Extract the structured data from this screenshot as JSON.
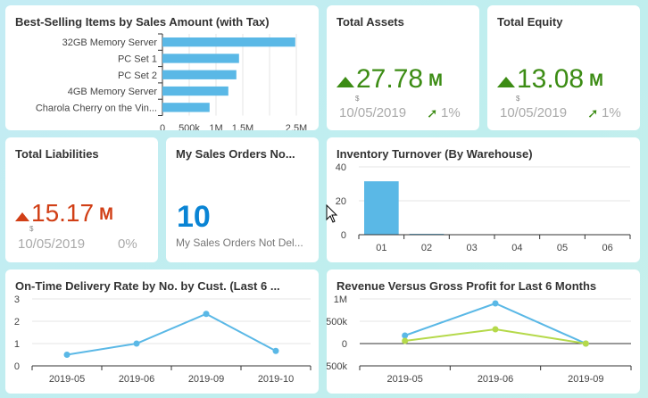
{
  "colors": {
    "positive": "#3c8c14",
    "negative": "#d13f16",
    "blue": "#0a84d4",
    "series1": "#5ab8e6",
    "series2": "#b5d94a"
  },
  "best_selling": {
    "title": "Best-Selling Items by Sales Amount (with Tax)",
    "chart_data": {
      "type": "bar",
      "orientation": "horizontal",
      "categories": [
        "32GB Memory Server",
        "PC Set 1",
        "PC Set 2",
        "4GB Memory Server",
        "Charola Cherry on the Vin..."
      ],
      "values": [
        2480000,
        1430000,
        1380000,
        1230000,
        880000
      ],
      "xticks": [
        "0",
        "500k",
        "1M",
        "1.5M",
        "2.5M"
      ],
      "xlim": [
        0,
        2500000
      ],
      "grid": true
    }
  },
  "total_assets": {
    "title": "Total Assets",
    "value": "27.78",
    "unit": "M",
    "currency": "$",
    "date": "10/05/2019",
    "change": "1%",
    "trend": "up"
  },
  "total_equity": {
    "title": "Total Equity",
    "value": "13.08",
    "unit": "M",
    "currency": "$",
    "date": "10/05/2019",
    "change": "1%",
    "trend": "up"
  },
  "total_liabilities": {
    "title": "Total Liabilities",
    "value": "15.17",
    "unit": "M",
    "currency": "$",
    "date": "10/05/2019",
    "change": "0%",
    "trend": "up"
  },
  "sales_orders": {
    "title": "My Sales Orders No...",
    "value": "10",
    "subtitle": "My Sales Orders Not Del..."
  },
  "inventory": {
    "title": "Inventory Turnover (By Warehouse)",
    "chart_data": {
      "type": "bar",
      "categories": [
        "01",
        "02",
        "03",
        "04",
        "05",
        "06"
      ],
      "values": [
        31.5,
        0.5,
        0,
        0,
        0,
        0
      ],
      "yticks": [
        "0",
        "20",
        "40"
      ],
      "ylim": [
        0,
        40
      ],
      "grid": true
    }
  },
  "delivery": {
    "title": "On-Time Delivery Rate by No. by Cust. (Last 6 ...",
    "chart_data": {
      "type": "line",
      "categories": [
        "2019-05",
        "2019-06",
        "2019-09",
        "2019-10"
      ],
      "series": [
        {
          "values": [
            0.5,
            1.0,
            2.33,
            0.67
          ]
        }
      ],
      "yticks": [
        "0",
        "1",
        "2",
        "3"
      ],
      "ylim": [
        0,
        3
      ],
      "grid": true
    }
  },
  "revenue": {
    "title": "Revenue Versus Gross Profit for Last 6 Months",
    "chart_data": {
      "type": "line",
      "categories": [
        "2019-05",
        "2019-06",
        "2019-09"
      ],
      "series": [
        {
          "values": [
            180000,
            900000,
            0
          ]
        },
        {
          "values": [
            60000,
            320000,
            0
          ]
        }
      ],
      "yticks": [
        "-500k",
        "0",
        "500k",
        "1M"
      ],
      "ylim": [
        -500000,
        1000000
      ],
      "grid": true
    }
  }
}
